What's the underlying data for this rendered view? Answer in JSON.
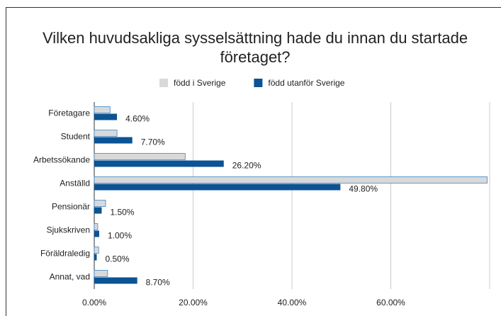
{
  "chart_data": {
    "type": "bar",
    "orientation": "horizontal",
    "title": "Vilken huvudsakliga sysselsättning hade du innan du startade företaget?",
    "categories": [
      "Företagare",
      "Student",
      "Arbetssökande",
      "Anställd",
      "Pensionär",
      "Sjukskriven",
      "Föräldraledig",
      "Annat, vad"
    ],
    "series": [
      {
        "name": "född i Sverige",
        "color": "#d9d9d9",
        "values": [
          3.2,
          4.6,
          18.4,
          79.5,
          2.3,
          0.7,
          0.9,
          2.7
        ]
      },
      {
        "name": "född utanför Sverige",
        "color": "#0b5394",
        "values": [
          4.6,
          7.7,
          26.2,
          49.8,
          1.5,
          1.0,
          0.5,
          8.7
        ],
        "value_labels": [
          "4.60%",
          "7.70%",
          "26.20%",
          "49.80%",
          "1.50%",
          "1.00%",
          "0.50%",
          "8.70%"
        ]
      }
    ],
    "xlim": [
      0,
      80
    ],
    "xticks": [
      {
        "value": 0,
        "label": "0.00%"
      },
      {
        "value": 20,
        "label": "20.00%"
      },
      {
        "value": 40,
        "label": "40.00%"
      },
      {
        "value": 60,
        "label": "60.00%"
      }
    ],
    "grid": true,
    "legend": "top"
  }
}
